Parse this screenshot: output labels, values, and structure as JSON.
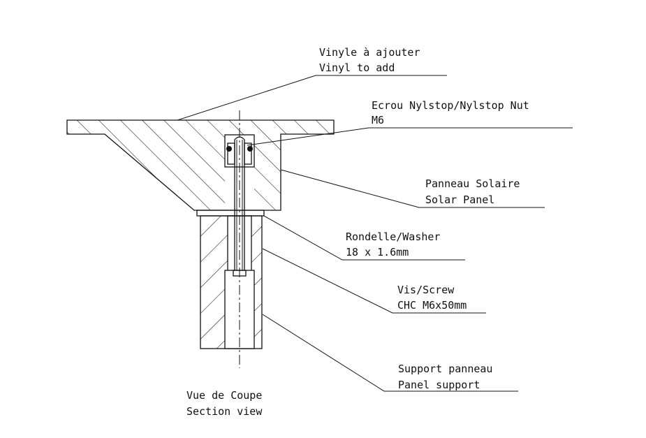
{
  "labels": {
    "vinyl_fr": "Vinyle à ajouter",
    "vinyl_en": "Vinyl to add",
    "nut_line1": "Ecrou Nylstop/Nylstop Nut",
    "nut_line2": "M6",
    "panel_fr": "Panneau Solaire",
    "panel_en": "Solar Panel",
    "washer_line1": "Rondelle/Washer",
    "washer_line2": "18 x 1.6mm",
    "screw_line1": "Vis/Screw",
    "screw_line2": "CHC M6x50mm",
    "support_fr": "Support panneau",
    "support_en": "Panel support",
    "view_fr": "Vue de Coupe",
    "view_en": "Section view"
  }
}
